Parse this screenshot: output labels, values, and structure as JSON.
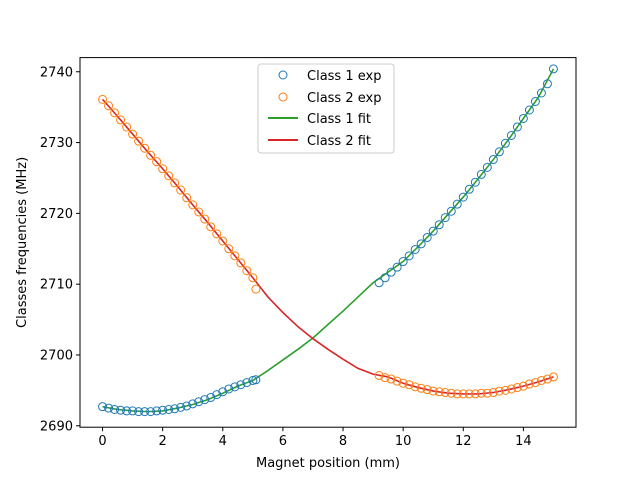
{
  "chart_data": {
    "type": "scatter",
    "xlabel": "Magnet position (mm)",
    "ylabel": "Classes frequencies (MHz)",
    "xlim": [
      -0.75,
      15.75
    ],
    "ylim": [
      2689.8,
      2742.0
    ],
    "xticks": [
      0,
      2,
      4,
      6,
      8,
      10,
      12,
      14
    ],
    "yticks": [
      2690,
      2700,
      2710,
      2720,
      2730,
      2740
    ],
    "grid": false,
    "legend_position": "upper-center",
    "colors": {
      "class1": "#1f77b4",
      "class2": "#ff7f0e",
      "class1_fit": "#2ca02c",
      "class2_fit": "#d62728"
    },
    "legend": [
      "Class 1 exp",
      "Class 2 exp",
      "Class 1 fit",
      "Class 2 fit"
    ],
    "scatter_series": [
      {
        "name": "Class 1 exp",
        "marker": "open-circle",
        "color": "#1f77b4",
        "x": [
          0.0,
          0.2,
          0.4,
          0.6,
          0.8,
          1.0,
          1.2,
          1.4,
          1.6,
          1.8,
          2.0,
          2.2,
          2.4,
          2.6,
          2.8,
          3.0,
          3.2,
          3.4,
          3.6,
          3.8,
          4.0,
          4.2,
          4.4,
          4.6,
          4.8,
          5.0,
          5.1,
          9.2,
          9.4,
          9.6,
          9.8,
          10.0,
          10.2,
          10.4,
          10.6,
          10.8,
          11.0,
          11.2,
          11.4,
          11.6,
          11.8,
          12.0,
          12.2,
          12.4,
          12.6,
          12.8,
          13.0,
          13.2,
          13.4,
          13.6,
          13.8,
          14.0,
          14.2,
          14.4,
          14.6,
          14.8,
          15.0
        ],
        "y": [
          2692.7,
          2692.5,
          2692.3,
          2692.2,
          2692.1,
          2692.1,
          2692.0,
          2692.0,
          2692.0,
          2692.1,
          2692.2,
          2692.3,
          2692.4,
          2692.6,
          2692.8,
          2693.1,
          2693.4,
          2693.7,
          2694.0,
          2694.4,
          2694.8,
          2695.2,
          2695.5,
          2695.8,
          2696.1,
          2696.4,
          2696.5,
          2710.2,
          2710.9,
          2711.7,
          2712.4,
          2713.2,
          2714.0,
          2714.9,
          2715.7,
          2716.6,
          2717.5,
          2718.4,
          2719.4,
          2720.3,
          2721.3,
          2722.3,
          2723.4,
          2724.4,
          2725.5,
          2726.5,
          2727.6,
          2728.7,
          2729.9,
          2731.0,
          2732.2,
          2733.4,
          2734.6,
          2735.8,
          2737.0,
          2738.3,
          2740.4
        ]
      },
      {
        "name": "Class 2 exp",
        "marker": "open-circle",
        "color": "#ff7f0e",
        "x": [
          0.0,
          0.2,
          0.4,
          0.6,
          0.8,
          1.0,
          1.2,
          1.4,
          1.6,
          1.8,
          2.0,
          2.2,
          2.4,
          2.6,
          2.8,
          3.0,
          3.2,
          3.4,
          3.6,
          3.8,
          4.0,
          4.2,
          4.4,
          4.6,
          4.8,
          5.0,
          5.1,
          9.2,
          9.4,
          9.6,
          9.8,
          10.0,
          10.2,
          10.4,
          10.6,
          10.8,
          11.0,
          11.2,
          11.4,
          11.6,
          11.8,
          12.0,
          12.2,
          12.4,
          12.6,
          12.8,
          13.0,
          13.2,
          13.4,
          13.6,
          13.8,
          14.0,
          14.2,
          14.4,
          14.6,
          14.8,
          15.0
        ],
        "y": [
          2736.1,
          2735.2,
          2734.2,
          2733.2,
          2732.2,
          2731.2,
          2730.2,
          2729.2,
          2728.2,
          2727.3,
          2726.3,
          2725.3,
          2724.3,
          2723.3,
          2722.2,
          2721.2,
          2720.2,
          2719.2,
          2718.1,
          2717.1,
          2716.1,
          2715.0,
          2714.0,
          2713.0,
          2711.9,
          2710.9,
          2709.3,
          2697.1,
          2696.8,
          2696.6,
          2696.3,
          2696.0,
          2695.8,
          2695.5,
          2695.3,
          2695.1,
          2694.9,
          2694.8,
          2694.7,
          2694.6,
          2694.5,
          2694.5,
          2694.5,
          2694.5,
          2694.6,
          2694.6,
          2694.7,
          2694.9,
          2695.0,
          2695.2,
          2695.4,
          2695.6,
          2695.9,
          2696.1,
          2696.4,
          2696.6,
          2696.9
        ]
      }
    ],
    "line_series": [
      {
        "name": "Class 1 fit",
        "color": "#2ca02c",
        "x": [
          0,
          0.5,
          1,
          1.5,
          2,
          2.5,
          3,
          3.5,
          4,
          4.5,
          5,
          5.5,
          6,
          6.5,
          7,
          7.5,
          8,
          8.5,
          9,
          9.5,
          10,
          10.5,
          11,
          11.5,
          12,
          12.5,
          13,
          13.5,
          14,
          14.5,
          15
        ],
        "y": [
          2692.7,
          2692.3,
          2692.1,
          2692.0,
          2692.1,
          2692.5,
          2693.0,
          2693.7,
          2694.6,
          2695.6,
          2696.4,
          2697.8,
          2699.3,
          2700.8,
          2702.4,
          2704.3,
          2706.2,
          2708.2,
          2710.2,
          2711.7,
          2713.2,
          2715.3,
          2717.5,
          2719.9,
          2722.3,
          2724.9,
          2727.6,
          2730.4,
          2733.4,
          2736.4,
          2740.4
        ]
      },
      {
        "name": "Class 2 fit",
        "color": "#d62728",
        "x": [
          0,
          0.5,
          1,
          1.5,
          2,
          2.5,
          3,
          3.5,
          4,
          4.5,
          5,
          5.5,
          6,
          6.5,
          7,
          7.5,
          8,
          8.5,
          9,
          9.5,
          10,
          10.5,
          11,
          11.5,
          12,
          12.5,
          13,
          13.5,
          14,
          14.5,
          15
        ],
        "y": [
          2736.1,
          2733.7,
          2731.2,
          2728.7,
          2726.3,
          2723.8,
          2721.2,
          2718.7,
          2716.1,
          2713.5,
          2710.9,
          2708.2,
          2706.0,
          2704.0,
          2702.3,
          2700.8,
          2699.4,
          2698.1,
          2697.3,
          2696.9,
          2696.0,
          2695.4,
          2694.9,
          2694.6,
          2694.5,
          2694.5,
          2694.7,
          2695.1,
          2695.6,
          2696.2,
          2696.9
        ]
      }
    ]
  }
}
